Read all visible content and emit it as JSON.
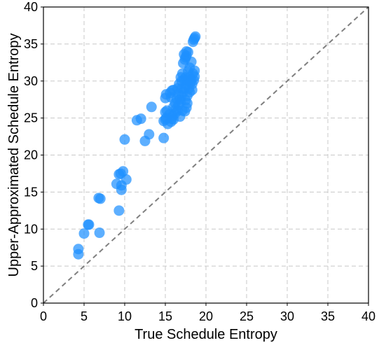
{
  "chart_data": {
    "type": "scatter",
    "title": "",
    "xlabel": "True Schedule Entropy",
    "ylabel": "Upper-Approximated Schedule Entropy",
    "xlim": [
      0,
      40
    ],
    "ylim": [
      0,
      40
    ],
    "xticks": [
      "0",
      "5",
      "10",
      "15",
      "20",
      "25",
      "30",
      "35",
      "40"
    ],
    "yticks": [
      "0",
      "5",
      "10",
      "15",
      "20",
      "25",
      "30",
      "35",
      "40"
    ],
    "grid": true,
    "reference_line": {
      "style": "dashed",
      "color": "#808080",
      "from": [
        0,
        0
      ],
      "to": [
        40,
        40
      ]
    },
    "point_color": "#1e90ff",
    "points": [
      [
        4.3,
        6.6
      ],
      [
        4.3,
        7.3
      ],
      [
        5.0,
        9.4
      ],
      [
        5.5,
        10.6
      ],
      [
        5.6,
        10.6
      ],
      [
        6.8,
        14.2
      ],
      [
        7.0,
        14.1
      ],
      [
        6.9,
        9.5
      ],
      [
        9.3,
        12.5
      ],
      [
        9.0,
        16.1
      ],
      [
        9.3,
        17.4
      ],
      [
        9.5,
        17.5
      ],
      [
        9.8,
        17.8
      ],
      [
        9.6,
        15.3
      ],
      [
        9.6,
        15.9
      ],
      [
        10.2,
        16.7
      ],
      [
        10.0,
        22.1
      ],
      [
        11.5,
        24.7
      ],
      [
        12.0,
        24.9
      ],
      [
        12.5,
        21.9
      ],
      [
        13.0,
        22.8
      ],
      [
        13.3,
        26.5
      ],
      [
        14.8,
        22.3
      ],
      [
        14.8,
        24.6
      ],
      [
        15.0,
        24.8
      ],
      [
        15.1,
        25.0
      ],
      [
        15.3,
        24.2
      ],
      [
        15.0,
        25.8
      ],
      [
        15.2,
        26.0
      ],
      [
        15.0,
        27.7
      ],
      [
        15.1,
        28.2
      ],
      [
        15.6,
        28.4
      ],
      [
        15.8,
        28.7
      ],
      [
        16.0,
        28.8
      ],
      [
        15.7,
        27.8
      ],
      [
        15.9,
        25.3
      ],
      [
        16.2,
        25.6
      ],
      [
        16.5,
        26.0
      ],
      [
        16.8,
        25.2
      ],
      [
        16.0,
        24.8
      ],
      [
        15.8,
        24.9
      ],
      [
        16.0,
        26.5
      ],
      [
        16.3,
        26.2
      ],
      [
        16.6,
        26.8
      ],
      [
        16.9,
        27.2
      ],
      [
        17.1,
        26.0
      ],
      [
        17.4,
        25.9
      ],
      [
        17.6,
        26.4
      ],
      [
        16.8,
        27.5
      ],
      [
        17.0,
        28.0
      ],
      [
        17.2,
        28.5
      ],
      [
        17.4,
        29.0
      ],
      [
        17.6,
        29.5
      ],
      [
        17.8,
        30.0
      ],
      [
        18.0,
        30.5
      ],
      [
        18.2,
        30.2
      ],
      [
        18.4,
        31.0
      ],
      [
        18.6,
        31.4
      ],
      [
        17.3,
        30.2
      ],
      [
        17.5,
        30.5
      ],
      [
        17.7,
        28.0
      ],
      [
        17.9,
        29.0
      ],
      [
        18.1,
        29.8
      ],
      [
        18.3,
        29.6
      ],
      [
        18.5,
        30.1
      ],
      [
        17.5,
        27.4
      ],
      [
        17.7,
        27.0
      ],
      [
        18.0,
        28.5
      ],
      [
        16.5,
        29.0
      ],
      [
        16.7,
        29.6
      ],
      [
        17.0,
        30.0
      ],
      [
        17.2,
        32.4
      ],
      [
        17.4,
        32.9
      ],
      [
        17.6,
        33.4
      ],
      [
        17.8,
        33.9
      ],
      [
        17.5,
        33.2
      ],
      [
        17.3,
        33.6
      ],
      [
        17.6,
        34.0
      ],
      [
        18.0,
        31.8
      ],
      [
        18.2,
        32.6
      ],
      [
        18.4,
        35.3
      ],
      [
        18.6,
        35.8
      ],
      [
        18.7,
        36.0
      ],
      [
        18.5,
        35.6
      ],
      [
        16.2,
        27.0
      ],
      [
        16.4,
        27.6
      ],
      [
        16.6,
        28.2
      ],
      [
        15.5,
        25.5
      ],
      [
        15.7,
        24.5
      ],
      [
        17.1,
        31.0
      ],
      [
        16.9,
        30.5
      ],
      [
        17.8,
        31.3
      ],
      [
        18.3,
        28.8
      ],
      [
        18.6,
        30.6
      ],
      [
        17.0,
        29.0
      ]
    ]
  }
}
